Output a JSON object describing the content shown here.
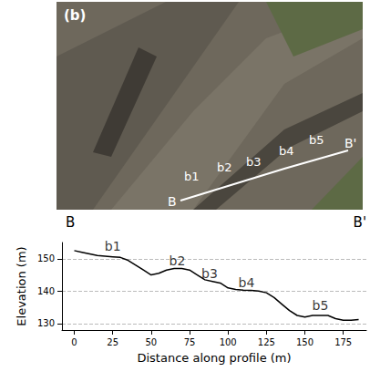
{
  "photo": {
    "panel_label": "(b)",
    "start": "B",
    "end": "B'",
    "marks": [
      "b1",
      "b2",
      "b3",
      "b4",
      "b5"
    ]
  },
  "chart_data": {
    "type": "line",
    "endpoints": [
      "B",
      "B'"
    ],
    "xlabel": "Distance along profile (m)",
    "ylabel": "Elevation (m)",
    "x": [
      0,
      5,
      10,
      15,
      20,
      25,
      30,
      35,
      40,
      45,
      50,
      55,
      60,
      65,
      70,
      75,
      80,
      85,
      90,
      95,
      100,
      105,
      110,
      115,
      120,
      125,
      130,
      135,
      140,
      145,
      150,
      155,
      160,
      165,
      170,
      175,
      180,
      185
    ],
    "values": [
      152.5,
      152,
      151.5,
      151,
      150.8,
      150.6,
      150.4,
      149.5,
      148,
      146.5,
      145,
      145.5,
      146.5,
      147,
      147,
      146.5,
      145,
      143.5,
      143,
      142.5,
      141,
      140.5,
      140.3,
      140.2,
      140,
      139.5,
      138,
      136,
      134,
      132.5,
      132,
      132.5,
      132.5,
      132.5,
      131.5,
      131,
      131,
      131.2
    ],
    "color": "#000000",
    "annotations": [
      {
        "text": "b1",
        "x": 25,
        "y": 154
      },
      {
        "text": "b2",
        "x": 67,
        "y": 149.5
      },
      {
        "text": "b3",
        "x": 88,
        "y": 145.5
      },
      {
        "text": "b4",
        "x": 112,
        "y": 142.5
      },
      {
        "text": "b5",
        "x": 160,
        "y": 135.5
      }
    ],
    "xlim": [
      -8,
      190
    ],
    "xticks": [
      0,
      25,
      50,
      75,
      100,
      125,
      150,
      175
    ],
    "ylim": [
      128,
      155
    ],
    "yticks": [
      130,
      140,
      150
    ],
    "grid": true
  }
}
